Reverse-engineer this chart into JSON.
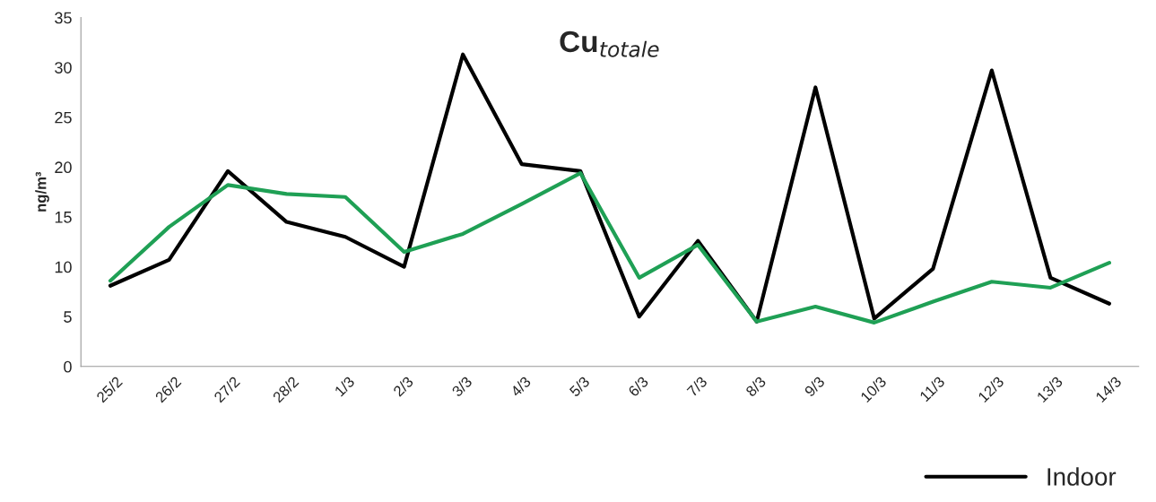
{
  "chart_data": {
    "type": "line",
    "title": "Cu$_{totale}$",
    "ylabel": "ng/m³",
    "categories": [
      "25/2",
      "26/2",
      "27/2",
      "28/2",
      "1/3",
      "2/3",
      "3/3",
      "4/3",
      "5/3",
      "6/3",
      "7/3",
      "8/3",
      "9/3",
      "10/3",
      "11/3",
      "12/3",
      "13/3",
      "14/3"
    ],
    "series": [
      {
        "name": "Indoor",
        "color": "#000000",
        "values": [
          8.1,
          10.7,
          19.6,
          14.5,
          13.0,
          10.0,
          31.3,
          20.3,
          19.6,
          5.0,
          12.6,
          4.5,
          28.0,
          4.8,
          9.8,
          29.7,
          8.9,
          6.3
        ]
      },
      {
        "color": "#1fa055",
        "values": [
          8.6,
          14.0,
          18.2,
          17.3,
          17.0,
          11.5,
          13.3,
          16.3,
          19.4,
          8.9,
          12.2,
          4.5,
          6.0,
          4.4,
          6.5,
          8.5,
          7.9,
          10.4
        ]
      }
    ],
    "ylim": [
      0,
      35
    ],
    "yticks": [
      0,
      5,
      10,
      15,
      20,
      25,
      30,
      35
    ],
    "grid": false,
    "legend": "bottom right",
    "marker": "none",
    "line_style": "solid"
  }
}
